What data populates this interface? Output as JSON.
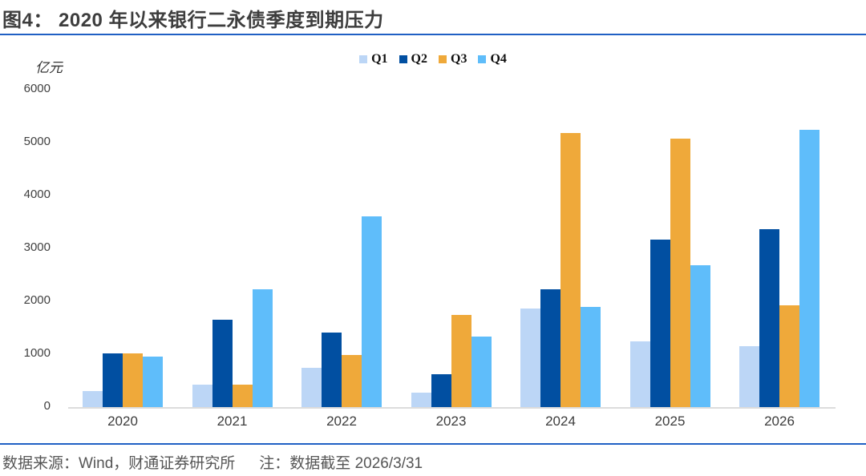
{
  "title": "图4： 2020 年以来银行二永债季度到期压力",
  "footer": {
    "source": "数据来源：Wind，财通证券研究所",
    "note": "注：数据截至 2026/3/31"
  },
  "colors": {
    "accent_rule": "#2060c4",
    "baseline": "#dcdcdc",
    "title_text": "#3d3d3d",
    "footer_text": "#555555"
  },
  "chart_data": {
    "type": "bar",
    "title": "2020 年以来银行二永债季度到期压力",
    "unit_label": "亿元",
    "categories": [
      "2020",
      "2021",
      "2022",
      "2023",
      "2024",
      "2025",
      "2026"
    ],
    "series": [
      {
        "name": "Q1",
        "color": "#bcd6f6",
        "values": [
          300,
          430,
          740,
          280,
          1870,
          1250,
          1150
        ]
      },
      {
        "name": "Q2",
        "color": "#014fa1",
        "values": [
          1020,
          1650,
          1410,
          620,
          2230,
          3170,
          3360
        ]
      },
      {
        "name": "Q3",
        "color": "#efa93a",
        "values": [
          1020,
          430,
          990,
          1750,
          5180,
          5070,
          1930
        ]
      },
      {
        "name": "Q4",
        "color": "#5fbdfa",
        "values": [
          950,
          2230,
          3600,
          1330,
          1890,
          2680,
          5250
        ]
      }
    ],
    "ylim": [
      0,
      6000
    ],
    "yticks": [
      0,
      1000,
      2000,
      3000,
      4000,
      5000,
      6000
    ],
    "grid": false,
    "legend_position": "top-center"
  }
}
